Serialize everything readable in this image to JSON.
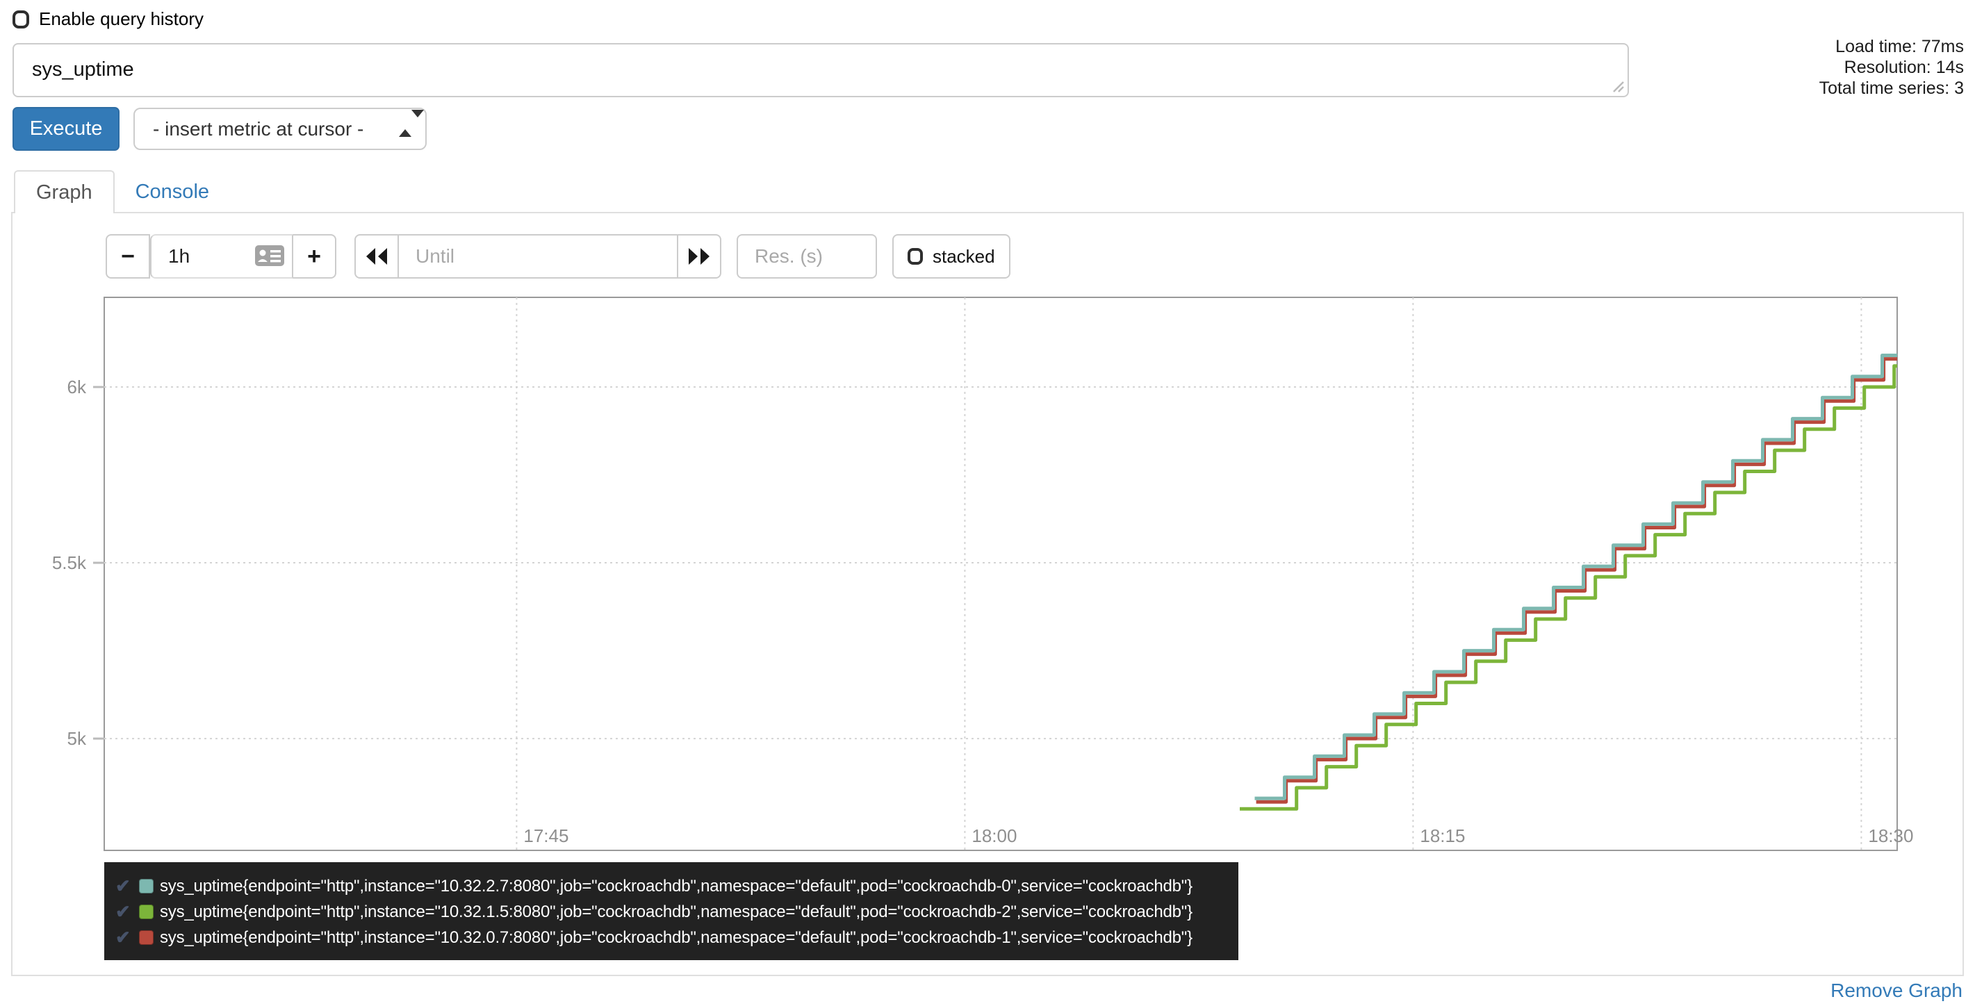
{
  "header": {
    "enable_query_history_label": "Enable query history"
  },
  "query": {
    "value": "sys_uptime"
  },
  "stats": {
    "load_time": "Load time: 77ms",
    "resolution": "Resolution: 14s",
    "total_series": "Total time series: 3"
  },
  "toolbar": {
    "execute_label": "Execute",
    "insert_metric_placeholder": "- insert metric at cursor -"
  },
  "tabs": {
    "graph": "Graph",
    "console": "Console"
  },
  "graph_controls": {
    "minus_label": "−",
    "plus_label": "+",
    "range_value": "1h",
    "until_placeholder": "Until",
    "res_placeholder": "Res. (s)",
    "stacked_label": "stacked"
  },
  "colors": {
    "accent_blue": "#337ab7",
    "legend_background": "#222222",
    "legend_check": "#47536a",
    "grid_line": "#d4d4d4",
    "plot_border": "#9a9a9a",
    "tick_text": "#8f8f8f"
  },
  "legend": {
    "items": [
      {
        "label": "sys_uptime{endpoint=\"http\",instance=\"10.32.2.7:8080\",job=\"cockroachdb\",namespace=\"default\",pod=\"cockroachdb-0\",service=\"cockroachdb\"}",
        "color": "#7db8b0",
        "checked": true
      },
      {
        "label": "sys_uptime{endpoint=\"http\",instance=\"10.32.1.5:8080\",job=\"cockroachdb\",namespace=\"default\",pod=\"cockroachdb-2\",service=\"cockroachdb\"}",
        "color": "#7cb53a",
        "checked": true
      },
      {
        "label": "sys_uptime{endpoint=\"http\",instance=\"10.32.0.7:8080\",job=\"cockroachdb\",namespace=\"default\",pod=\"cockroachdb-1\",service=\"cockroachdb\"}",
        "color": "#b8493c",
        "checked": true
      }
    ]
  },
  "footer": {
    "remove_graph_label": "Remove Graph"
  },
  "chart_data": {
    "type": "line",
    "title": "sys_uptime",
    "xlabel": "",
    "ylabel": "",
    "grid": true,
    "legend_position": "below",
    "x_axis": {
      "start_minute_of_day": 1051.2,
      "end_minute_of_day": 1111.2,
      "ticks": [
        {
          "label": "17:45",
          "minute_of_day": 1065
        },
        {
          "label": "18:00",
          "minute_of_day": 1080
        },
        {
          "label": "18:15",
          "minute_of_day": 1095
        },
        {
          "label": "18:30",
          "minute_of_day": 1110
        }
      ]
    },
    "y_axis": {
      "top_value": 6255,
      "bottom_value": 4682,
      "ticks": [
        {
          "label": "6k",
          "value": 6000
        },
        {
          "label": "5.5k",
          "value": 5500
        },
        {
          "label": "5k",
          "value": 5000
        }
      ]
    },
    "series": [
      {
        "name": "cockroachdb-1",
        "color": "#b8493c",
        "draw_order": 1,
        "start_minute": 1089.75,
        "start_value": 4820,
        "end_minute": 1111.2,
        "end_value": 6101,
        "step_seconds": 60,
        "slope_per_second": 1
      },
      {
        "name": "cockroachdb-0",
        "color": "#7db8b0",
        "draw_order": 2,
        "start_minute": 1089.7,
        "start_value": 4830,
        "end_minute": 1111.2,
        "end_value": 6120,
        "step_seconds": 60,
        "slope_per_second": 1
      },
      {
        "name": "cockroachdb-2",
        "color": "#7cb53a",
        "draw_order": 3,
        "flat_from_minute": 1089.2,
        "start_minute": 1090.1,
        "start_value": 4800,
        "end_minute": 1111.2,
        "end_value": 6066,
        "step_seconds": 60,
        "slope_per_second": 1
      }
    ]
  }
}
